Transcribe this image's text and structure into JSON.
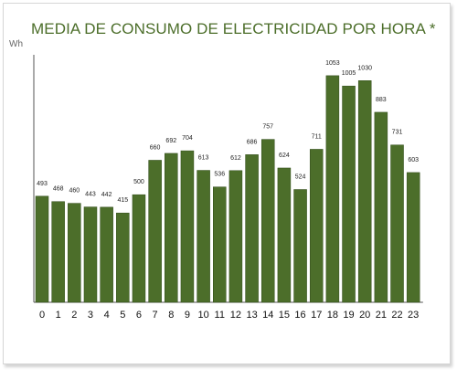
{
  "title": "MEDIA DE CONSUMO DE ELECTRICIDAD POR HORA *",
  "unit_label": "Wh",
  "colors": {
    "bar": "#4c6e2a",
    "bar_edge": "#2f4a18",
    "axis": "#555555"
  },
  "chart_data": {
    "type": "bar",
    "title": "MEDIA DE CONSUMO DE ELECTRICIDAD POR HORA *",
    "ylabel": "Wh",
    "xlabel": "",
    "categories": [
      "0",
      "1",
      "2",
      "3",
      "4",
      "5",
      "6",
      "7",
      "8",
      "9",
      "10",
      "11",
      "12",
      "13",
      "14",
      "15",
      "16",
      "17",
      "18",
      "19",
      "20",
      "21",
      "22",
      "23"
    ],
    "values": [
      493,
      468,
      460,
      443,
      442,
      415,
      500,
      660,
      692,
      704,
      613,
      536,
      612,
      686,
      757,
      624,
      524,
      711,
      1053,
      1005,
      1030,
      883,
      731,
      603
    ],
    "ylim": [
      0,
      1150
    ],
    "grid": false,
    "legend": "none"
  }
}
